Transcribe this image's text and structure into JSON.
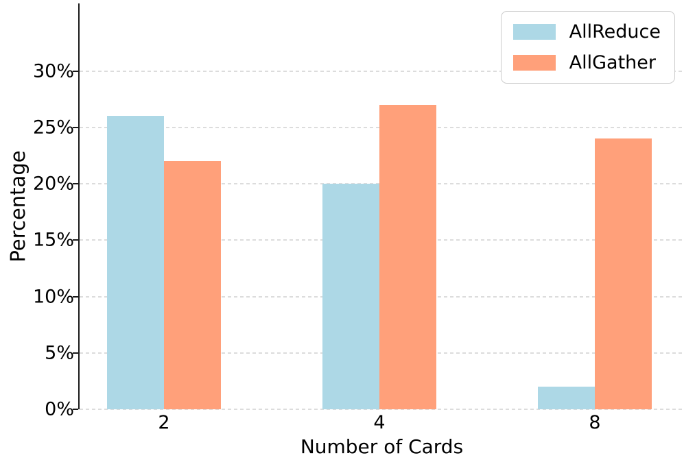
{
  "chart_data": {
    "type": "bar",
    "title": "",
    "xlabel": "Number of Cards",
    "ylabel": "Percentage",
    "categories": [
      "2",
      "4",
      "8"
    ],
    "series": [
      {
        "name": "AllReduce",
        "color": "#ADD8E6",
        "values": [
          26,
          20,
          2
        ]
      },
      {
        "name": "AllGather",
        "color": "#FFA07A",
        "values": [
          22,
          27,
          24
        ]
      }
    ],
    "yticks": [
      {
        "value": 0,
        "label": "0%"
      },
      {
        "value": 5,
        "label": "5%"
      },
      {
        "value": 10,
        "label": "10%"
      },
      {
        "value": 15,
        "label": "15%"
      },
      {
        "value": 20,
        "label": "20%"
      },
      {
        "value": 25,
        "label": "25%"
      },
      {
        "value": 30,
        "label": "30%"
      }
    ],
    "ylim": [
      0,
      36
    ],
    "grid": "horizontal-dashed",
    "legend_position": "upper-right"
  },
  "colors": {
    "allreduce": "#ADD8E6",
    "allgather": "#FFA07A",
    "gridline": "#dcdcdc",
    "spine": "#1a1a1a"
  }
}
